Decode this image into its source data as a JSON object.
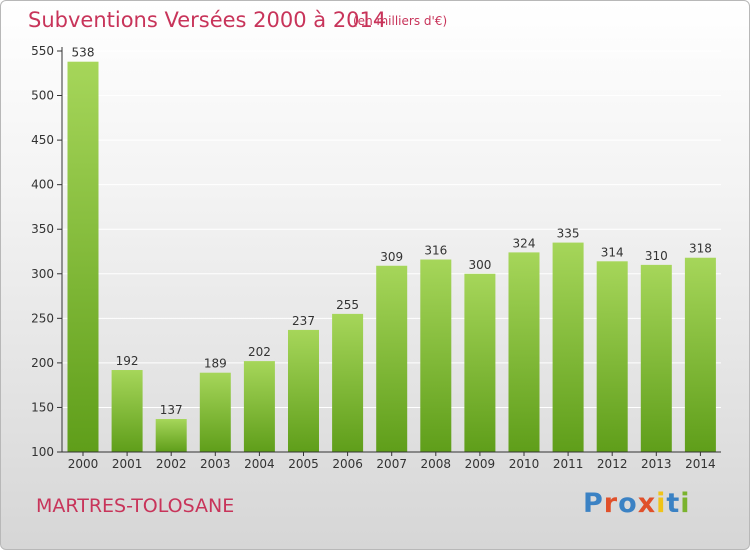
{
  "header": {
    "title": "Subventions Versées 2000 à 2014",
    "unit_note": "(en milliers d'€)"
  },
  "footer": {
    "place": "MARTRES-TOLOSANE",
    "logo": {
      "text": "Proxiti",
      "letter_colors": [
        "#3b82c4",
        "#e0502a",
        "#3b82c4",
        "#e0502a",
        "#f0c419",
        "#3b82c4",
        "#7ab32e"
      ]
    }
  },
  "colors": {
    "title": "#c8345a",
    "bar_top": "#a6d65a",
    "bar_bottom": "#5f9e1a",
    "axis": "#333333",
    "grid": "#ffffff"
  },
  "chart_data": {
    "type": "bar",
    "title": "Subventions Versées 2000 à 2014",
    "subtitle": "(en milliers d'€)",
    "categories": [
      "2000",
      "2001",
      "2002",
      "2003",
      "2004",
      "2005",
      "2006",
      "2007",
      "2008",
      "2009",
      "2010",
      "2011",
      "2012",
      "2013",
      "2014"
    ],
    "values": [
      538,
      192,
      137,
      189,
      202,
      237,
      255,
      309,
      316,
      300,
      324,
      335,
      314,
      310,
      318
    ],
    "ylim": [
      100,
      550
    ],
    "yticks": [
      100,
      150,
      200,
      250,
      300,
      350,
      400,
      450,
      500,
      550
    ],
    "grid": true,
    "xlabel": "",
    "ylabel": ""
  }
}
